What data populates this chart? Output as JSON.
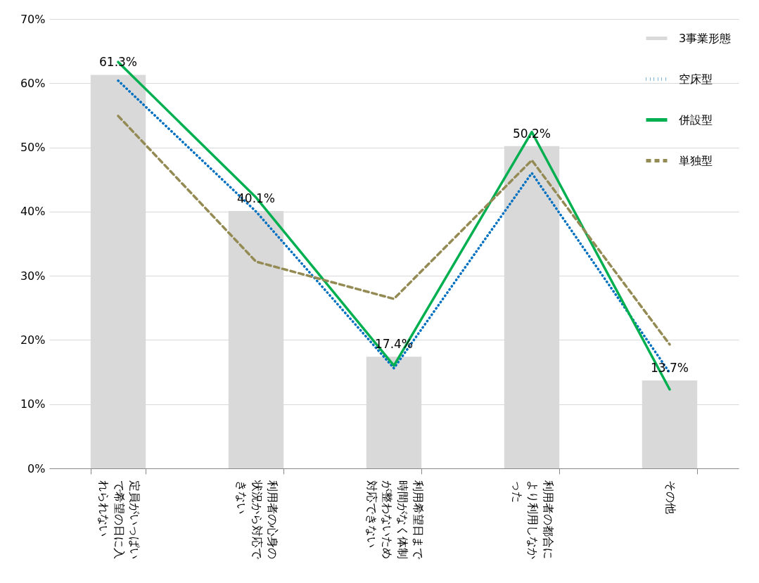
{
  "chart_data": {
    "type": "bar",
    "categories": [
      "定員がいっぱいで希望の日に入れられない",
      "利用者の心身の状況から対応できない",
      "利用希望日まで時間がなく体制が整わないため対応できない",
      "利用者の都合により利用しなかった",
      "その他"
    ],
    "series": [
      {
        "name": "3事業形態",
        "color": "#d9d9d9",
        "values": [
          61.3,
          40.1,
          17.4,
          50.2,
          13.7
        ],
        "value_labels": [
          "61.3%",
          "40.1%",
          "17.4%",
          "50.2%",
          "13.7%"
        ]
      },
      {
        "name": "空床型",
        "type": "line",
        "color": "#0070c0",
        "line_style": "dotted",
        "values": [
          60.4,
          40.0,
          15.6,
          46.0,
          14.9
        ]
      },
      {
        "name": "併設型",
        "type": "line",
        "color": "#00b050",
        "line_style": "solid",
        "values": [
          63.3,
          42.2,
          16.0,
          52.4,
          12.3
        ]
      },
      {
        "name": "単独型",
        "type": "line",
        "color": "#948a54",
        "line_style": "dashed",
        "values": [
          54.9,
          32.2,
          26.4,
          48.0,
          19.3
        ]
      }
    ],
    "ylim": [
      0,
      70
    ],
    "yticks": [
      {
        "value": 0,
        "label": "0%"
      },
      {
        "value": 10,
        "label": "10%"
      },
      {
        "value": 20,
        "label": "20%"
      },
      {
        "value": 30,
        "label": "30%"
      },
      {
        "value": 40,
        "label": "40%"
      },
      {
        "value": 50,
        "label": "50%"
      },
      {
        "value": 60,
        "label": "60%"
      },
      {
        "value": 70,
        "label": "70%"
      }
    ],
    "grid": "y",
    "legend": "top right"
  }
}
